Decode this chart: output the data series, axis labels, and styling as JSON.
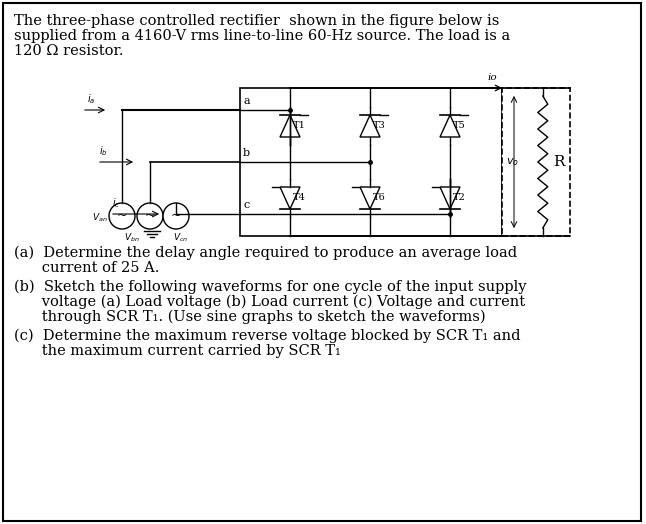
{
  "bg_color": "#ffffff",
  "border_color": "#000000",
  "text_color": "#000000",
  "title_lines": [
    "The three-phase controlled rectifier  shown in the figure below is",
    "supplied from a 4160-V rms line-to-line 60-Hz source. The load is a",
    "120 Ω resistor."
  ],
  "qa_line1": "(a)  Determine the delay angle required to produce an average load",
  "qa_line2": "      current of 25 A.",
  "qb_line1": "(b)  Sketch the following waveforms for one cycle of the input supply",
  "qb_line2": "      voltage (a) Load voltage (b) Load current (c) Voltage and current",
  "qb_line3": "      through SCR T₁. (Use sine graphs to sketch the waveforms)",
  "qc_line1": "(c)  Determine the maximum reverse voltage blocked by SCR T₁ and",
  "qc_line2": "      the maximum current carried by SCR T₁",
  "fig_width": 6.46,
  "fig_height": 5.24,
  "font_size": 10.5
}
